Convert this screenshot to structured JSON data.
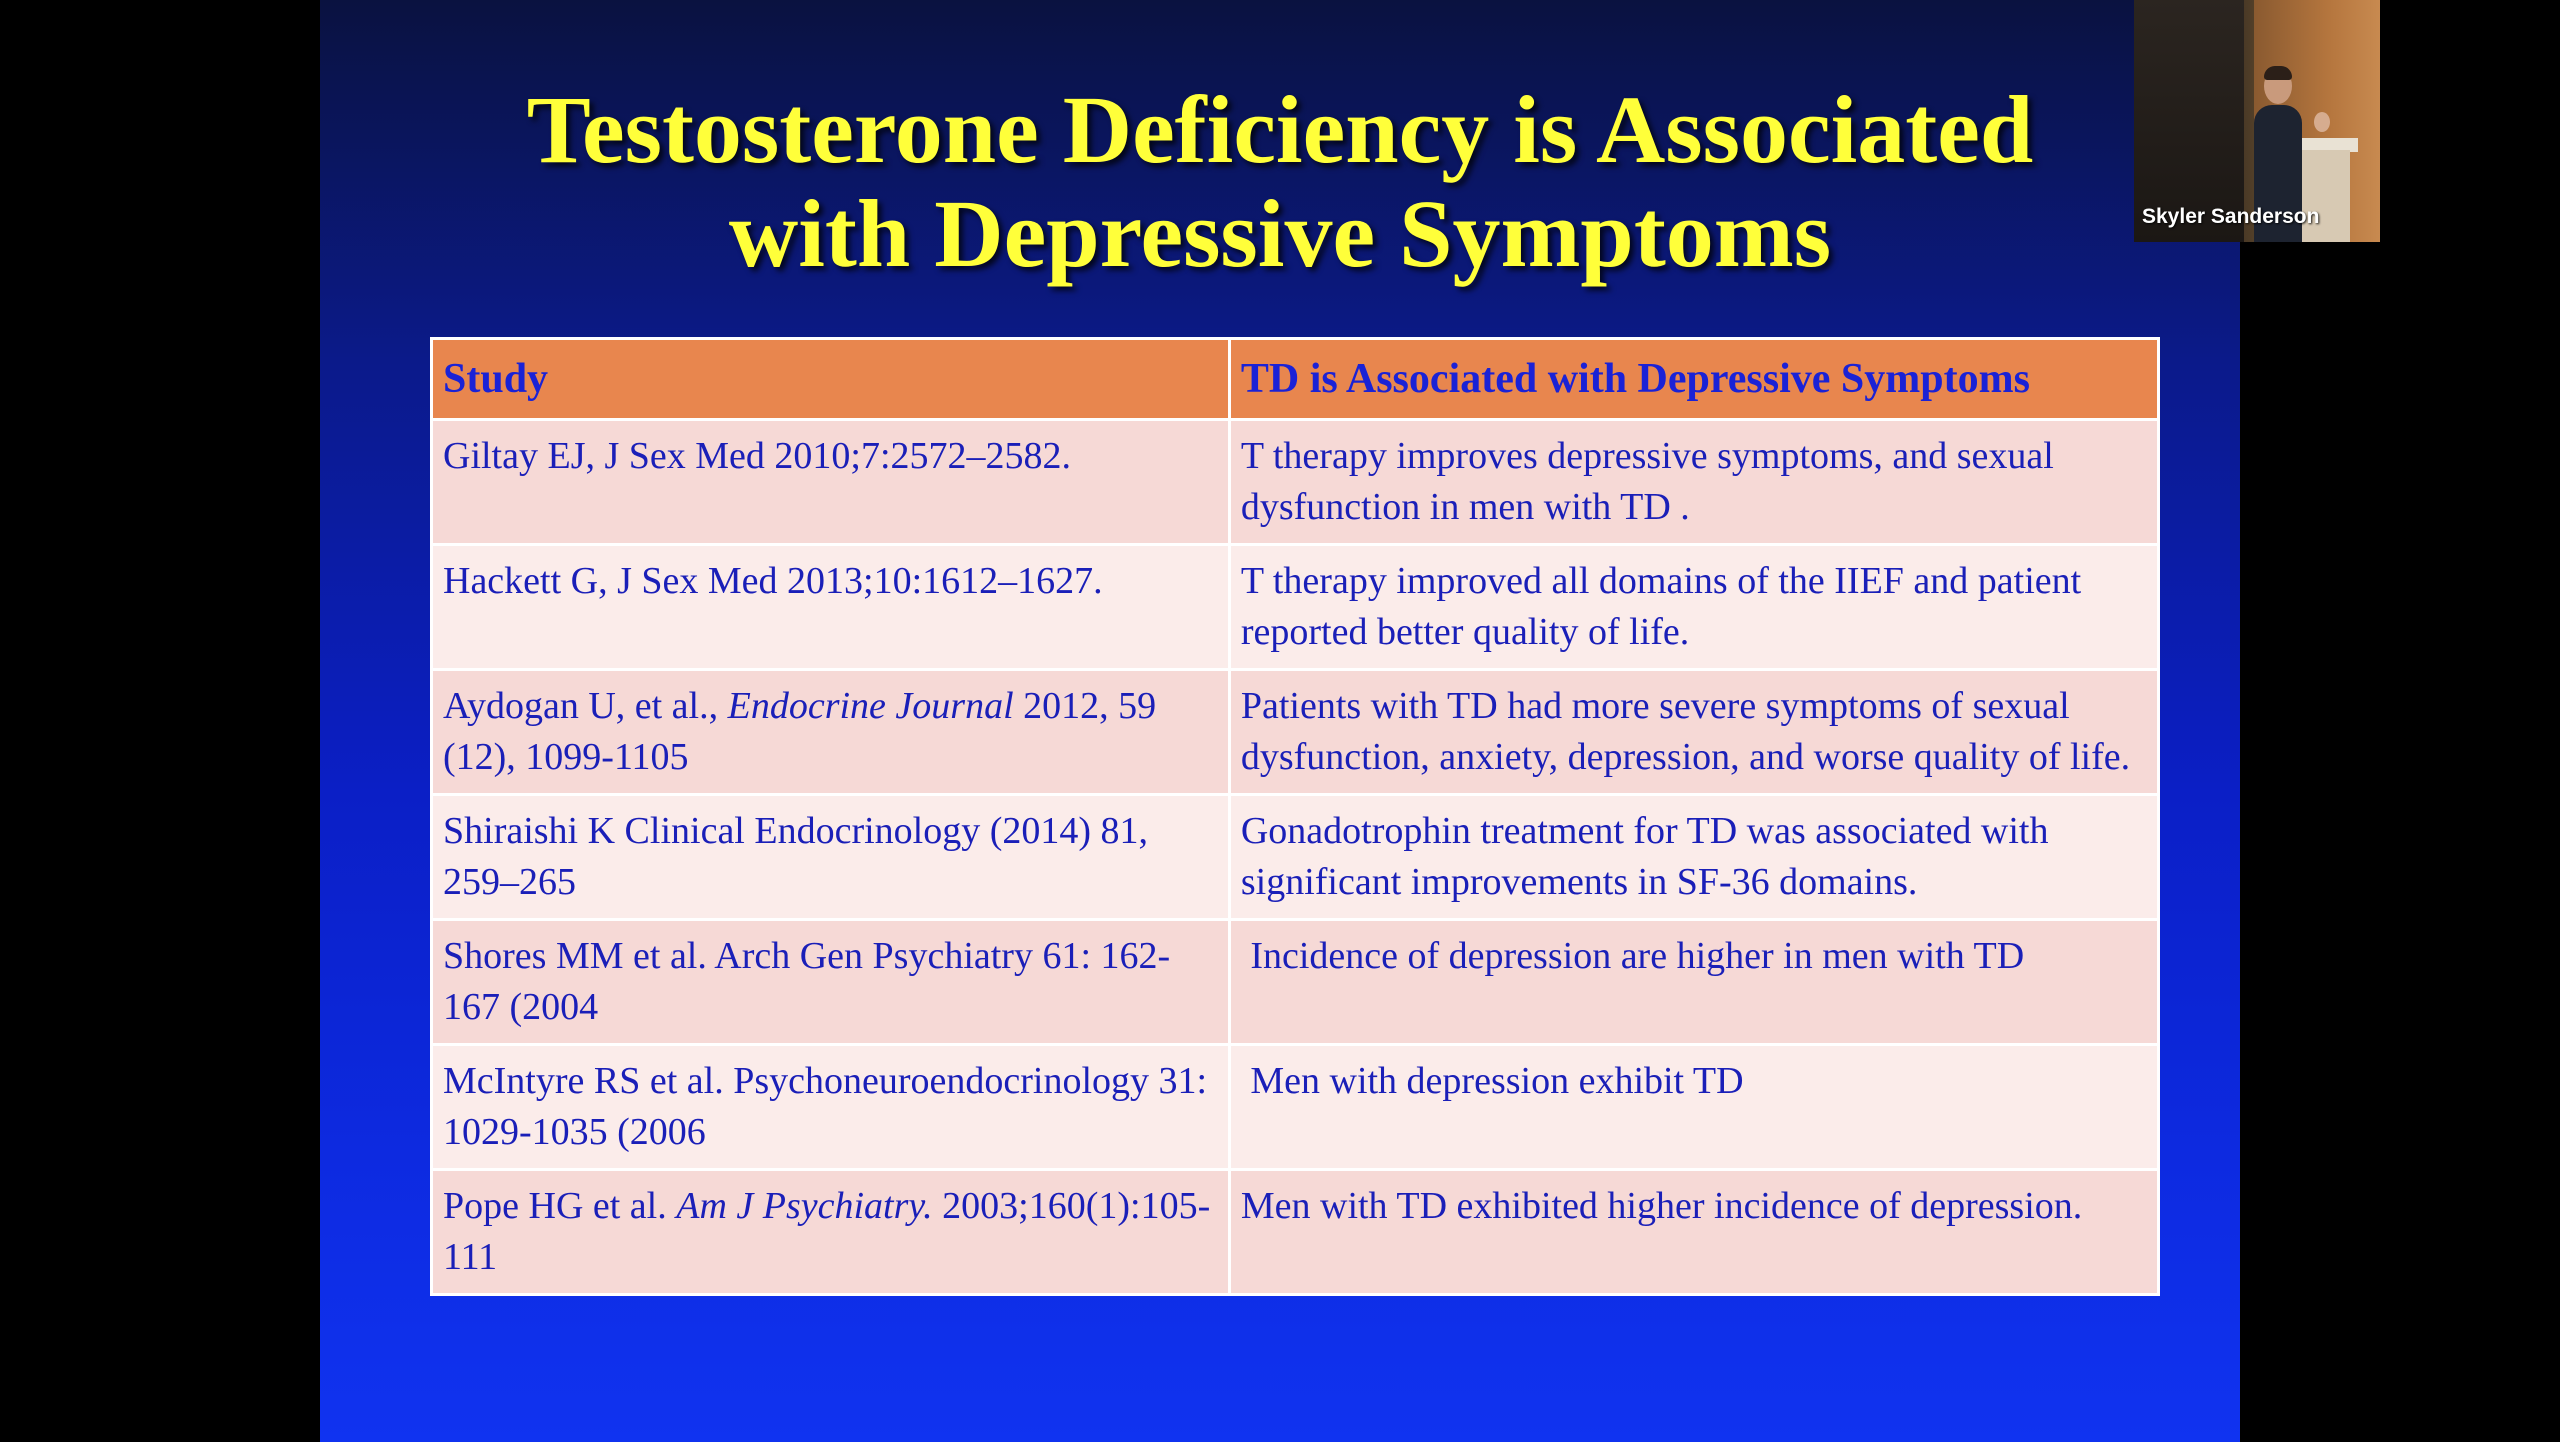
{
  "slide": {
    "title_line1": "Testosterone Deficiency is Associated",
    "title_line2": "with Depressive Symptoms",
    "table": {
      "headers": [
        "Study",
        "TD is Associated with Depressive Symptoms"
      ],
      "rows": [
        {
          "study_main": "Giltay EJ, J Sex Med 2010;7:2572–2582.",
          "study_italic": "",
          "study_tail": "",
          "finding": "T therapy improves depressive symptoms, and sexual dysfunction in men with TD ."
        },
        {
          "study_main": "Hackett G, J Sex Med 2013;10:1612–1627.",
          "study_italic": "",
          "study_tail": "",
          "finding": "T therapy improved all domains of the IIEF and patient reported better quality of life."
        },
        {
          "study_main": "Aydogan U, et al., ",
          "study_italic": "Endocrine Journal",
          "study_tail": " 2012, 59 (12), 1099-1105",
          "finding": "Patients with TD had more severe symptoms of sexual dysfunction, anxiety, depression, and worse quality of life."
        },
        {
          "study_main": "Shiraishi K Clinical Endocrinology (2014) 81, 259–265",
          "study_italic": "",
          "study_tail": "",
          "finding": "Gonadotrophin treatment for TD  was associated with significant improvements in SF-36 domains."
        },
        {
          "study_main": "Shores MM et al. Arch Gen Psychiatry 61: 162-167 (2004",
          "study_italic": "",
          "study_tail": "",
          "finding": " Incidence of depression are higher in men with TD"
        },
        {
          "study_main": "McIntyre RS et al. Psychoneuroendocrinology 31: 1029-1035 (2006",
          "study_italic": "",
          "study_tail": "",
          "finding": " Men with depression exhibit TD"
        },
        {
          "study_main": "Pope HG et al. ",
          "study_italic": "Am J Psychiatry.",
          "study_tail": " 2003;160(1):105-111",
          "finding": "Men with TD exhibited higher incidence of depression."
        }
      ]
    }
  },
  "video_tile": {
    "participant_name": "Skyler Sanderson"
  },
  "colors": {
    "title": "#ffff3a",
    "header_bg": "#e8864e",
    "row_odd_bg": "#f6d9d6",
    "row_even_bg": "#fbecea",
    "text": "#1a1fb8",
    "slide_bg": "#0b1fc6"
  }
}
